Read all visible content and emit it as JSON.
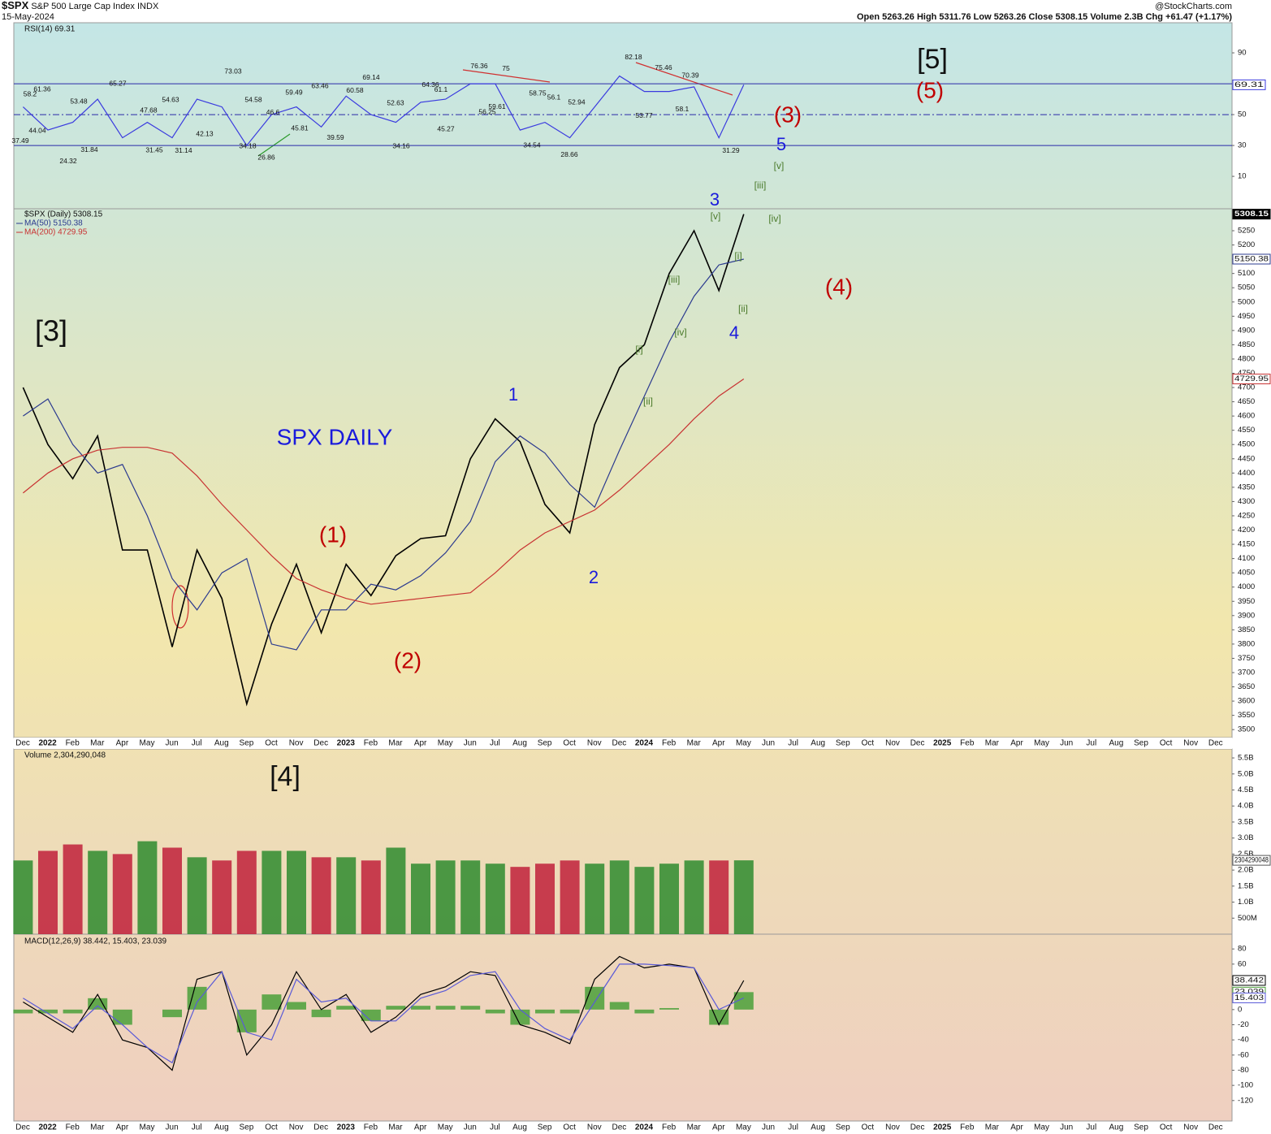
{
  "header": {
    "symbol": "$SPX",
    "name": "S&P 500 Large Cap Index",
    "exchange": "INDX",
    "date": "15-May-2024",
    "source": "@StockCharts.com",
    "quote": "Open 5263.26  High 5311.76  Low 5263.26  Close 5308.15  Volume 2.3B  Chg +61.47 (+1.17%)"
  },
  "date_axis": [
    "Dec",
    "2022",
    "Feb",
    "Mar",
    "Apr",
    "May",
    "Jun",
    "Jul",
    "Aug",
    "Sep",
    "Oct",
    "Nov",
    "Dec",
    "2023",
    "Feb",
    "Mar",
    "Apr",
    "May",
    "Jun",
    "Jul",
    "Aug",
    "Sep",
    "Oct",
    "Nov",
    "Dec",
    "2024",
    "Feb",
    "Mar",
    "Apr",
    "May",
    "Jun",
    "Jul",
    "Aug",
    "Sep",
    "Oct",
    "Nov",
    "Dec",
    "2025",
    "Feb",
    "Mar",
    "Apr",
    "May",
    "Jun",
    "Jul",
    "Aug",
    "Sep",
    "Oct",
    "Nov",
    "Dec"
  ],
  "annotations": [
    "[3]",
    "[4]",
    "[5]",
    "(1)",
    "(2)",
    "(3)",
    "(4)",
    "(5)",
    "1",
    "2",
    "3",
    "4",
    "5",
    "SPX DAILY",
    "[i]",
    "[ii]",
    "[iii]",
    "[iv]",
    "[v]",
    "[i]",
    "[ii]",
    "[iii]",
    "[iv]",
    "[v]"
  ],
  "chart_data": [
    {
      "type": "line",
      "title": "RSI(14) 69.31",
      "x": [
        "2021-12",
        "2022-01",
        "2022-02",
        "2022-03",
        "2022-04",
        "2022-05",
        "2022-06",
        "2022-07",
        "2022-08",
        "2022-09",
        "2022-10",
        "2022-11",
        "2022-12",
        "2023-01",
        "2023-02",
        "2023-03",
        "2023-04",
        "2023-05",
        "2023-06",
        "2023-07",
        "2023-08",
        "2023-09",
        "2023-10",
        "2023-11",
        "2023-12",
        "2024-01",
        "2024-02",
        "2024-03",
        "2024-04",
        "2024-05"
      ],
      "series": [
        {
          "color": "#3a3adf",
          "values": [
            55,
            40,
            45,
            60,
            35,
            45,
            35,
            60,
            55,
            30,
            50,
            55,
            42,
            62,
            50,
            45,
            58,
            60,
            70,
            70,
            40,
            45,
            35,
            55,
            75,
            65,
            65,
            68,
            35,
            69.31
          ]
        }
      ],
      "ylim": [
        -11,
        109.5
      ],
      "yticks": [
        90,
        50,
        30,
        10
      ],
      "levels": [
        70,
        50,
        30
      ],
      "peak_labels": [
        37.49,
        58.2,
        61.36,
        44.04,
        24.32,
        53.48,
        31.84,
        65.27,
        47.68,
        31.45,
        54.63,
        31.14,
        42.13,
        73.03,
        34.18,
        54.58,
        26.86,
        46.6,
        59.49,
        45.81,
        63.46,
        39.59,
        60.58,
        69.14,
        52.63,
        34.16,
        64.36,
        61.1,
        45.27,
        76.36,
        56.25,
        59.61,
        75.0,
        34.54,
        58.75,
        56.1,
        28.66,
        52.94,
        82.18,
        53.77,
        75.46,
        58.1,
        70.39,
        31.29
      ]
    },
    {
      "type": "line",
      "title": "$SPX (Daily) 5308.15",
      "x": [
        "2021-12",
        "2022-01",
        "2022-02",
        "2022-03",
        "2022-04",
        "2022-05",
        "2022-06",
        "2022-07",
        "2022-08",
        "2022-09",
        "2022-10",
        "2022-11",
        "2022-12",
        "2023-01",
        "2023-02",
        "2023-03",
        "2023-04",
        "2023-05",
        "2023-06",
        "2023-07",
        "2023-08",
        "2023-09",
        "2023-10",
        "2023-11",
        "2023-12",
        "2024-01",
        "2024-02",
        "2024-03",
        "2024-04",
        "2024-05"
      ],
      "series": [
        {
          "name": "$SPX (Daily) 5308.15",
          "color": "#000000",
          "values": [
            4700,
            4500,
            4380,
            4530,
            4130,
            4130,
            3790,
            4130,
            3960,
            3590,
            3870,
            4080,
            3840,
            4080,
            3970,
            4110,
            4170,
            4180,
            4450,
            4590,
            4510,
            4290,
            4190,
            4570,
            4770,
            4850,
            5100,
            5250,
            5040,
            5308.15
          ]
        },
        {
          "name": "MA(50) 5150.38",
          "color": "#2b3a8f",
          "values": [
            4600,
            4660,
            4500,
            4400,
            4430,
            4250,
            4030,
            3920,
            4050,
            4100,
            3800,
            3780,
            3920,
            3920,
            4010,
            3990,
            4040,
            4120,
            4230,
            4440,
            4530,
            4470,
            4360,
            4280,
            4480,
            4670,
            4860,
            5020,
            5130,
            5150.38
          ]
        },
        {
          "name": "MA(200) 4729.95",
          "color": "#c83232",
          "values": [
            4330,
            4400,
            4450,
            4480,
            4490,
            4490,
            4470,
            4390,
            4290,
            4200,
            4110,
            4030,
            3990,
            3960,
            3940,
            3950,
            3960,
            3970,
            3980,
            4050,
            4130,
            4190,
            4230,
            4270,
            4340,
            4420,
            4500,
            4590,
            4670,
            4729.95
          ]
        }
      ],
      "ylim": [
        3472,
        5327
      ],
      "yticks": [
        3500,
        3550,
        3600,
        3650,
        3700,
        3750,
        3800,
        3850,
        3900,
        3950,
        4000,
        4050,
        4100,
        4150,
        4200,
        4250,
        4300,
        4350,
        4400,
        4450,
        4500,
        4550,
        4600,
        4650,
        4700,
        4750,
        4800,
        4850,
        4900,
        4950,
        5000,
        5050,
        5100,
        5150,
        5200,
        5250
      ]
    },
    {
      "type": "bar",
      "title": "Volume 2,304,290,048",
      "up_color": "#2e8b2e",
      "down_color": "#c0203a",
      "x": [
        "2021-12",
        "2022-01",
        "2022-02",
        "2022-03",
        "2022-04",
        "2022-05",
        "2022-06",
        "2022-07",
        "2022-08",
        "2022-09",
        "2022-10",
        "2022-11",
        "2022-12",
        "2023-01",
        "2023-02",
        "2023-03",
        "2023-04",
        "2023-05",
        "2023-06",
        "2023-07",
        "2023-08",
        "2023-09",
        "2023-10",
        "2023-11",
        "2023-12",
        "2024-01",
        "2024-02",
        "2024-03",
        "2024-04",
        "2024-05"
      ],
      "values": [
        2300000000,
        2600000000,
        2800000000,
        2600000000,
        2500000000,
        2900000000,
        2700000000,
        2400000000,
        2300000000,
        2600000000,
        2600000000,
        2600000000,
        2400000000,
        2400000000,
        2300000000,
        2700000000,
        2200000000,
        2300000000,
        2300000000,
        2200000000,
        2100000000,
        2200000000,
        2300000000,
        2200000000,
        2300000000,
        2100000000,
        2200000000,
        2300000000,
        2300000000,
        2304290048
      ],
      "ylim": [
        0,
        5780000000
      ],
      "yticks": [
        {
          "value": 500000000,
          "label": "500M"
        },
        {
          "value": 1000000000,
          "label": "1.0B"
        },
        {
          "value": 1500000000,
          "label": "1.5B"
        },
        {
          "value": 2000000000,
          "label": "2.0B"
        },
        {
          "value": 2500000000,
          "label": "2.5B"
        },
        {
          "value": 3000000000,
          "label": "3.0B"
        },
        {
          "value": 3500000000,
          "label": "3.5B"
        },
        {
          "value": 4000000000,
          "label": "4.0B"
        },
        {
          "value": 4500000000,
          "label": "4.5B"
        },
        {
          "value": 5000000000,
          "label": "5.0B"
        },
        {
          "value": 5500000000,
          "label": "5.5B"
        }
      ]
    },
    {
      "type": "line",
      "title": "MACD(12,26,9) 38.442, 15.403, 23.039",
      "x": [
        "2021-12",
        "2022-01",
        "2022-02",
        "2022-03",
        "2022-04",
        "2022-05",
        "2022-06",
        "2022-07",
        "2022-08",
        "2022-09",
        "2022-10",
        "2022-11",
        "2022-12",
        "2023-01",
        "2023-02",
        "2023-03",
        "2023-04",
        "2023-05",
        "2023-06",
        "2023-07",
        "2023-08",
        "2023-09",
        "2023-10",
        "2023-11",
        "2023-12",
        "2024-01",
        "2024-02",
        "2024-03",
        "2024-04",
        "2024-05"
      ],
      "series": [
        {
          "color": "#4aa03a",
          "style": "bar",
          "values": [
            -5,
            -5,
            -5,
            15,
            -20,
            0,
            -10,
            30,
            0,
            -30,
            20,
            10,
            -10,
            5,
            -15,
            5,
            5,
            5,
            5,
            -5,
            -20,
            -5,
            -5,
            30,
            10,
            -5,
            2,
            0,
            -20,
            23.039
          ]
        },
        {
          "color": "#000000",
          "values": [
            10,
            -10,
            -30,
            20,
            -40,
            -50,
            -80,
            40,
            50,
            -60,
            -20,
            50,
            0,
            20,
            -30,
            -10,
            20,
            30,
            50,
            45,
            -20,
            -30,
            -45,
            40,
            70,
            55,
            60,
            55,
            -20,
            38.442
          ]
        },
        {
          "color": "#5a5ad8",
          "values": [
            15,
            -5,
            -25,
            5,
            -20,
            -50,
            -70,
            10,
            50,
            -30,
            -40,
            40,
            10,
            15,
            -15,
            -15,
            15,
            25,
            45,
            50,
            0,
            -25,
            -40,
            10,
            60,
            60,
            58,
            55,
            0,
            15.403
          ]
        }
      ],
      "ylim": [
        -147,
        99.5
      ],
      "yticks": [
        80,
        60,
        40,
        20,
        0,
        -20,
        -40,
        -60,
        -80,
        -100,
        -120
      ]
    }
  ]
}
